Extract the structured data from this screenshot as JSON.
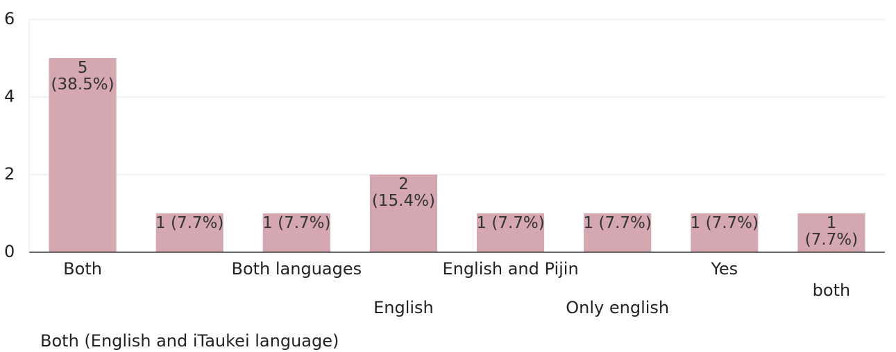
{
  "chart_data": {
    "type": "bar",
    "categories": [
      "Both",
      "Both (English and iTaukei language)",
      "Both languages",
      "English",
      "English and Pijin",
      "Only english",
      "Yes",
      "both"
    ],
    "values": [
      5,
      1,
      1,
      2,
      1,
      1,
      1,
      1
    ],
    "value_labels": [
      "5\n(38.5%)",
      "1 (7.7%)",
      "1 (7.7%)",
      "2\n(15.4%)",
      "1 (7.7%)",
      "1 (7.7%)",
      "1 (7.7%)",
      "1 (7.7%)"
    ],
    "color": "#d4a7b1",
    "ylim": [
      0,
      6
    ],
    "yticks": [
      0,
      2,
      4,
      6
    ],
    "grid": true
  }
}
